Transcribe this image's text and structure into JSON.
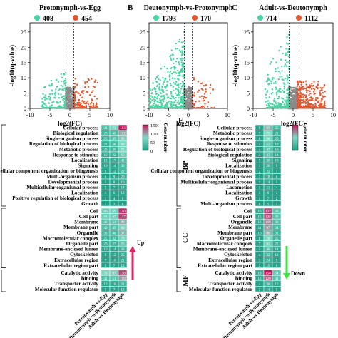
{
  "colors": {
    "up": "#e4572e",
    "down": "#44d5a1",
    "ns": "#8a8a8a",
    "heat_low": "#1f9e86",
    "heat_mid": "#7fdac4",
    "heat_high": "#c2185b"
  },
  "volcano": [
    {
      "panel": "",
      "title": "Protonymph-vs-Egg",
      "down_count": "408",
      "up_count": "454",
      "ylabel": "-log10(q-value)",
      "xlabel": "log2(FC)",
      "x_ticks": [
        "-10",
        "-5",
        "0",
        "5",
        "10"
      ],
      "y_ticks": [
        "0",
        "5",
        "10",
        "15",
        "20",
        "25"
      ]
    },
    {
      "panel": "B",
      "title": "Deutonymph-vs-Protonymph",
      "down_count": "1793",
      "up_count": "170",
      "ylabel": "",
      "xlabel": "log2(FC)",
      "x_ticks": [
        "-10",
        "-5",
        "0",
        "5",
        "10"
      ],
      "y_ticks": [
        "0",
        "5",
        "10",
        "15",
        "20",
        "25"
      ]
    },
    {
      "panel": "C",
      "title": "Adult-vs-Deutonymph",
      "down_count": "714",
      "up_count": "1112",
      "ylabel": "-log10(q-value)",
      "xlabel": "log2(FC)",
      "x_ticks": [
        "-10",
        "-5",
        "0",
        "5",
        "10"
      ],
      "y_ticks": [
        "0",
        "5",
        "10",
        "15",
        "20",
        "25"
      ]
    }
  ],
  "chart_data": [
    {
      "type": "heatmap",
      "title": "",
      "columns": [
        "Protonymph-vs-Egg",
        "Deutonymph-vs-Protonymph",
        "Adult-vs-Deutonymph"
      ],
      "legend_title": "Gene number",
      "legend_ticks": [
        "150",
        "100",
        "50",
        "0"
      ],
      "arrow_label": "Up",
      "groups": [
        {
          "rows": [
            "Cellular process",
            "Biological regulation",
            "Single-organism process",
            "Regulation of biological process",
            "Metabolic process",
            "Response to stimulus",
            "Localization",
            "Signaling",
            "Cellular component organization or biogenesis",
            "Multi-organism process",
            "Developmental process",
            "Multicellular organismal process",
            "Localization",
            "Positive regulation of biological process",
            "Growth"
          ]
        },
        {
          "rows": [
            "Cell",
            "Cell part",
            "Membrane",
            "Membrane part",
            "Organelle",
            "Macromolecular complex",
            "Organelle part",
            "Membrane-enclosed lumen",
            "Cytoskeleton",
            "Extracellular region",
            "Extracellular region part"
          ]
        },
        {
          "rows": [
            "Catalytic activity",
            "Binding",
            "Transporter activity",
            "Molecular function regulator"
          ]
        }
      ],
      "values": [
        [
          44,
          73,
          163
        ],
        [
          28,
          40,
          102
        ],
        [
          25,
          45,
          90
        ],
        [
          23,
          38,
          80
        ],
        [
          20,
          30,
          75
        ],
        [
          16,
          22,
          60
        ],
        [
          12,
          17,
          42
        ],
        [
          10,
          14,
          35
        ],
        [
          9,
          12,
          32
        ],
        [
          6,
          9,
          20
        ],
        [
          5,
          8,
          16
        ],
        [
          5,
          7,
          14
        ],
        [
          4,
          6,
          12
        ],
        [
          3,
          4,
          9
        ],
        [
          2,
          3,
          6
        ],
        [
          66,
          69,
          150
        ],
        [
          64,
          67,
          147
        ],
        [
          46,
          51,
          99
        ],
        [
          40,
          45,
          86
        ],
        [
          35,
          40,
          97
        ],
        [
          25,
          32,
          70
        ],
        [
          20,
          27,
          55
        ],
        [
          10,
          14,
          30
        ],
        [
          9,
          12,
          25
        ],
        [
          7,
          10,
          21
        ],
        [
          5,
          7,
          12
        ],
        [
          78,
          87,
          138
        ],
        [
          42,
          51,
          108
        ],
        [
          12,
          16,
          31
        ],
        [
          5,
          7,
          12
        ]
      ]
    },
    {
      "type": "heatmap",
      "title": "",
      "panel": "E",
      "columns": [
        "Protonymph-vs-Egg",
        "Deutonymph-vs-Protonymph",
        "Adult-vs-Deutonymph"
      ],
      "legend_title": "Gene number",
      "arrow_label": "Down",
      "groups": [
        {
          "label": "BP",
          "rows": [
            "Cellular process",
            "Metabolic process",
            "Single-organism process",
            "Response to stimulus",
            "Regulation of biological process",
            "Biological regulation",
            "Signaling",
            "Localization",
            "Cellular component organization or biogenesis",
            "Developmental process",
            "Multicellular organismal process",
            "Locomotion",
            "Localization",
            "Growth",
            "Multi-organism process"
          ]
        },
        {
          "label": "CC",
          "rows": [
            "Cell",
            "Cell part",
            "Organelle",
            "Membrane",
            "Membrane part",
            "Organelle part",
            "Macromolecular complex",
            "Membrane-enclosed lumen",
            "Cytoskeleton",
            "Extracellular region",
            "Extracellular region part"
          ]
        },
        {
          "label": "MF",
          "rows": [
            "Catalytic activity",
            "Binding",
            "Transporter activity",
            "Molecular function regulator"
          ]
        }
      ],
      "values": [
        [
          9,
          89,
          35
        ],
        [
          7,
          75,
          21
        ],
        [
          6,
          68,
          20
        ],
        [
          5,
          52,
          18
        ],
        [
          4,
          47,
          16
        ],
        [
          4,
          43,
          14
        ],
        [
          3,
          30,
          10
        ],
        [
          3,
          26,
          9
        ],
        [
          2,
          22,
          7
        ],
        [
          2,
          18,
          6
        ],
        [
          1,
          14,
          5
        ],
        [
          1,
          11,
          4
        ],
        [
          1,
          9,
          3
        ],
        [
          1,
          7,
          2
        ],
        [
          0,
          5,
          2
        ],
        [
          16,
          132,
          48
        ],
        [
          15,
          128,
          46
        ],
        [
          12,
          108,
          38
        ],
        [
          11,
          97,
          34
        ],
        [
          10,
          88,
          31
        ],
        [
          8,
          70,
          25
        ],
        [
          7,
          62,
          22
        ],
        [
          5,
          40,
          14
        ],
        [
          4,
          32,
          12
        ],
        [
          3,
          24,
          9
        ],
        [
          2,
          15,
          6
        ],
        [
          18,
          150,
          54
        ],
        [
          12,
          120,
          44
        ],
        [
          4,
          30,
          12
        ],
        [
          2,
          14,
          5
        ]
      ]
    }
  ]
}
